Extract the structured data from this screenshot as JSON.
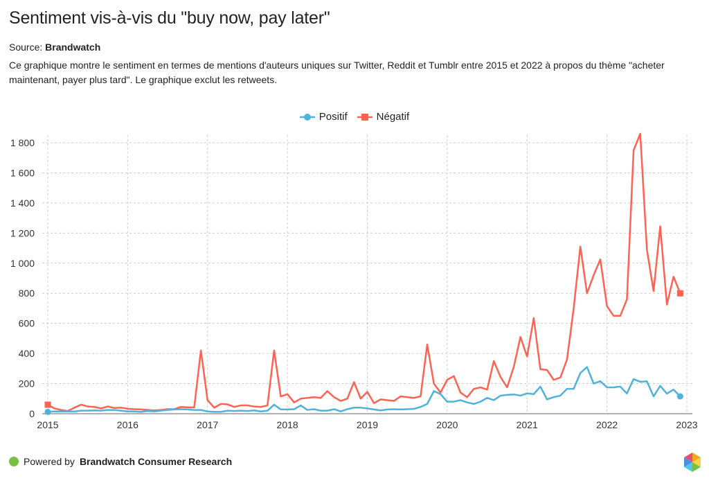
{
  "title": "Sentiment vis-à-vis du \"buy now, pay later\"",
  "source_label": "Source:",
  "source_name": "Brandwatch",
  "description": "Ce graphique montre le sentiment en termes de mentions d'auteurs uniques sur Twitter, Reddit et Tumblr entre 2015 et 2022 à propos du thème \"acheter maintenant, payer plus tard\". Le graphique exclut les retweets.",
  "footer": {
    "prefix": "Powered by",
    "brand": "Brandwatch Consumer Research"
  },
  "chart_data": {
    "type": "line",
    "title": "Sentiment vis-à-vis du \"buy now, pay later\"",
    "x_start": "2015-01",
    "frequency": "monthly",
    "xlim": [
      2015,
      2023
    ],
    "ylim": [
      0,
      1850
    ],
    "x_ticks": [
      "2015",
      "2016",
      "2017",
      "2018",
      "2019",
      "2020",
      "2021",
      "2022",
      "2023"
    ],
    "y_ticks": [
      0,
      200,
      400,
      600,
      800,
      1000,
      1200,
      1400,
      1600,
      1800
    ],
    "y_tick_labels": [
      "0",
      "200",
      "400",
      "600",
      "800",
      "1 000",
      "1 200",
      "1 400",
      "1 600",
      "1 800"
    ],
    "grid": true,
    "legend_position": "top-center",
    "series": [
      {
        "name": "Positif",
        "color": "#4db3dc",
        "marker": "circle",
        "values": [
          12,
          15,
          15,
          15,
          15,
          20,
          20,
          22,
          20,
          25,
          25,
          20,
          15,
          15,
          12,
          18,
          15,
          20,
          25,
          28,
          30,
          28,
          25,
          25,
          15,
          12,
          12,
          20,
          18,
          20,
          18,
          22,
          15,
          20,
          60,
          28,
          28,
          30,
          55,
          25,
          30,
          20,
          20,
          30,
          15,
          30,
          40,
          40,
          35,
          28,
          22,
          28,
          30,
          28,
          30,
          32,
          45,
          65,
          150,
          130,
          80,
          80,
          90,
          75,
          65,
          80,
          105,
          90,
          120,
          125,
          128,
          120,
          135,
          130,
          180,
          95,
          110,
          120,
          165,
          165,
          270,
          310,
          200,
          216,
          175,
          175,
          180,
          134,
          230,
          212,
          215,
          115,
          185,
          133,
          160,
          115
        ]
      },
      {
        "name": "Négatif",
        "color": "#ff6250",
        "marker": "square",
        "values": [
          60,
          35,
          25,
          18,
          40,
          60,
          48,
          45,
          35,
          48,
          38,
          40,
          33,
          30,
          28,
          25,
          22,
          25,
          30,
          30,
          45,
          42,
          42,
          420,
          90,
          40,
          65,
          62,
          45,
          55,
          55,
          48,
          45,
          55,
          420,
          115,
          130,
          75,
          100,
          105,
          110,
          105,
          150,
          110,
          85,
          100,
          210,
          100,
          145,
          70,
          95,
          90,
          85,
          115,
          110,
          105,
          115,
          460,
          200,
          140,
          225,
          250,
          140,
          110,
          165,
          175,
          160,
          350,
          245,
          175,
          310,
          510,
          380,
          635,
          295,
          290,
          225,
          240,
          360,
          700,
          1110,
          800,
          920,
          1025,
          715,
          650,
          650,
          760,
          1750,
          1860,
          1090,
          815,
          1245,
          725,
          910,
          800
        ]
      }
    ]
  }
}
